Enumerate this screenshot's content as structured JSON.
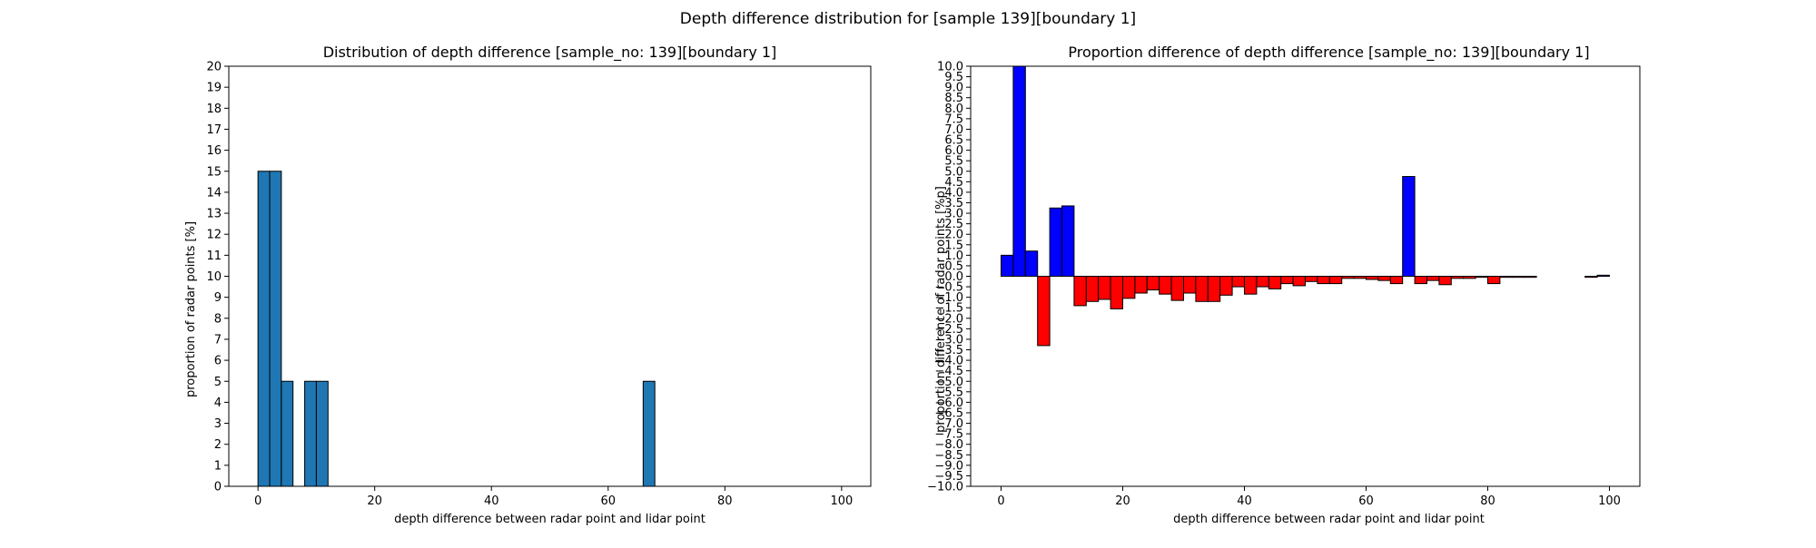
{
  "figure": {
    "suptitle": "Depth difference distribution for [sample 139][boundary 1]"
  },
  "colors": {
    "left_bars": "#1f77b4",
    "positive": "#0000ff",
    "negative": "#ff0000",
    "edge": "#000000"
  },
  "chart_data": [
    {
      "type": "bar",
      "title": "Distribution of depth difference [sample_no: 139][boundary 1]",
      "xlabel": "depth difference between radar point and lidar point",
      "ylabel": "proportion of radar points [%]",
      "xlim": [
        -5,
        105
      ],
      "ylim": [
        0,
        20
      ],
      "xticks": [
        0,
        20,
        40,
        60,
        80,
        100
      ],
      "yticks": [
        0,
        1,
        2,
        3,
        4,
        5,
        6,
        7,
        8,
        9,
        10,
        11,
        12,
        13,
        14,
        15,
        16,
        17,
        18,
        19,
        20
      ],
      "bin_width": 2,
      "bins": [
        {
          "x": 1,
          "value": 15
        },
        {
          "x": 3,
          "value": 15
        },
        {
          "x": 5,
          "value": 5
        },
        {
          "x": 9,
          "value": 5
        },
        {
          "x": 11,
          "value": 5
        },
        {
          "x": 67,
          "value": 5
        }
      ]
    },
    {
      "type": "bar",
      "title": "Proportion difference of depth difference [sample_no: 139][boundary 1]",
      "xlabel": "depth difference between radar point and lidar point",
      "ylabel": "proportion difference of radar points [%p]",
      "xlim": [
        -5,
        105
      ],
      "ylim": [
        -10,
        10
      ],
      "xticks": [
        0,
        20,
        40,
        60,
        80,
        100
      ],
      "yticks": [
        "−10.0",
        "−9.5",
        "−9.0",
        "−8.5",
        "−8.0",
        "−7.5",
        "−7.0",
        "−6.5",
        "−6.0",
        "−5.5",
        "−5.0",
        "−4.5",
        "−4.0",
        "−3.5",
        "−3.0",
        "−2.5",
        "−2.0",
        "−1.5",
        "−1.0",
        "−0.5",
        "0.0",
        "0.5",
        "1.0",
        "1.5",
        "2.0",
        "2.5",
        "3.0",
        "3.5",
        "4.0",
        "4.5",
        "5.0",
        "5.5",
        "6.0",
        "6.5",
        "7.0",
        "7.5",
        "8.0",
        "8.5",
        "9.0",
        "9.5",
        "10.0"
      ],
      "bin_width": 2,
      "bins": [
        {
          "x": 1,
          "value": 1.0
        },
        {
          "x": 3,
          "value": 10.0
        },
        {
          "x": 5,
          "value": 1.2
        },
        {
          "x": 7,
          "value": -3.3
        },
        {
          "x": 9,
          "value": 3.25
        },
        {
          "x": 11,
          "value": 3.35
        },
        {
          "x": 13,
          "value": -1.4
        },
        {
          "x": 15,
          "value": -1.2
        },
        {
          "x": 17,
          "value": -1.1
        },
        {
          "x": 19,
          "value": -1.55
        },
        {
          "x": 21,
          "value": -1.05
        },
        {
          "x": 23,
          "value": -0.8
        },
        {
          "x": 25,
          "value": -0.65
        },
        {
          "x": 27,
          "value": -0.85
        },
        {
          "x": 29,
          "value": -1.15
        },
        {
          "x": 31,
          "value": -0.8
        },
        {
          "x": 33,
          "value": -1.2
        },
        {
          "x": 35,
          "value": -1.2
        },
        {
          "x": 37,
          "value": -0.9
        },
        {
          "x": 39,
          "value": -0.5
        },
        {
          "x": 41,
          "value": -0.85
        },
        {
          "x": 43,
          "value": -0.5
        },
        {
          "x": 45,
          "value": -0.6
        },
        {
          "x": 47,
          "value": -0.35
        },
        {
          "x": 49,
          "value": -0.45
        },
        {
          "x": 51,
          "value": -0.25
        },
        {
          "x": 53,
          "value": -0.35
        },
        {
          "x": 55,
          "value": -0.35
        },
        {
          "x": 57,
          "value": -0.1
        },
        {
          "x": 59,
          "value": -0.1
        },
        {
          "x": 61,
          "value": -0.15
        },
        {
          "x": 63,
          "value": -0.2
        },
        {
          "x": 65,
          "value": -0.35
        },
        {
          "x": 67,
          "value": 4.75
        },
        {
          "x": 69,
          "value": -0.35
        },
        {
          "x": 71,
          "value": -0.2
        },
        {
          "x": 73,
          "value": -0.4
        },
        {
          "x": 75,
          "value": -0.1
        },
        {
          "x": 77,
          "value": -0.1
        },
        {
          "x": 79,
          "value": -0.05
        },
        {
          "x": 81,
          "value": -0.35
        },
        {
          "x": 83,
          "value": -0.05
        },
        {
          "x": 85,
          "value": -0.05
        },
        {
          "x": 87,
          "value": -0.05
        },
        {
          "x": 97,
          "value": -0.05
        },
        {
          "x": 99,
          "value": 0.05
        }
      ]
    }
  ]
}
